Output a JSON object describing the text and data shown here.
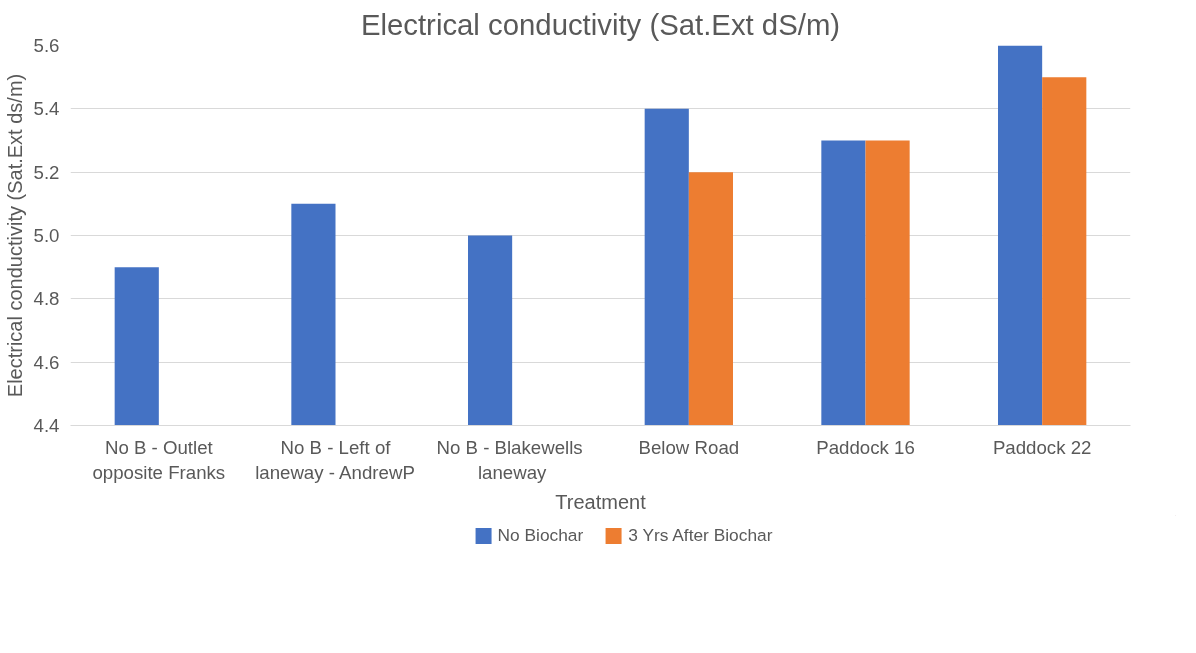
{
  "chart_data": {
    "type": "bar",
    "title": "Electrical conductivity (Sat.Ext dS/m)",
    "xlabel": "Treatment",
    "ylabel": "Electrical conductivity (Sat.Ext ds/m)",
    "categories": [
      "No B - Outlet opposite Franks",
      "No B - Left of laneway - AndrewP",
      "No B -  Blakewells laneway",
      "Below Road",
      "Paddock 16",
      "Paddock 22"
    ],
    "series": [
      {
        "name": "No Biochar",
        "color": "#4472c4",
        "values": [
          4.9,
          5.1,
          5.0,
          5.4,
          5.3,
          5.6
        ]
      },
      {
        "name": "3 Yrs After Biochar",
        "color": "#ed7d31",
        "values": [
          null,
          null,
          null,
          5.2,
          5.3,
          5.5
        ]
      }
    ],
    "ylim": [
      4.4,
      5.6
    ],
    "yticks": [
      {
        "value": 4.4,
        "label": "4.4"
      },
      {
        "value": 4.6,
        "label": "4.6"
      },
      {
        "value": 4.8,
        "label": "4.8"
      },
      {
        "value": 5.0,
        "label": "5.0"
      },
      {
        "value": 5.2,
        "label": "5.2"
      },
      {
        "value": 5.4,
        "label": "5.4"
      },
      {
        "value": 5.6,
        "label": "5.6"
      }
    ],
    "grid": "y",
    "legend": "bottom"
  }
}
